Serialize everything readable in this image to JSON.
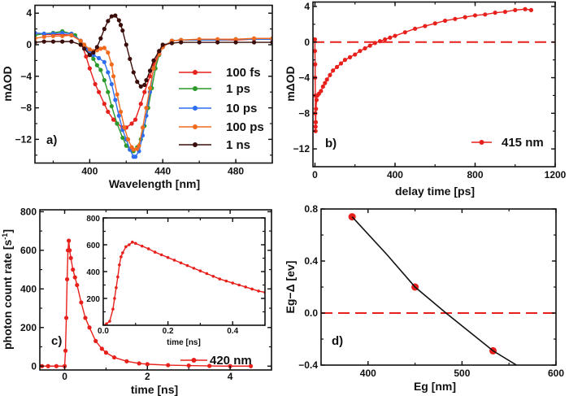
{
  "chart_data": [
    {
      "panel_label": "a)",
      "type": "line",
      "xlabel": "Wavelength [nm]",
      "ylabel": "mΔOD",
      "xlim": [
        370,
        500
      ],
      "ylim": [
        -15,
        5
      ],
      "xticks": [
        {
          "v": 400,
          "label": "400"
        },
        {
          "v": 440,
          "label": "440"
        },
        {
          "v": 480,
          "label": "480"
        }
      ],
      "yticks": [
        {
          "v": -12,
          "label": "−12"
        },
        {
          "v": -8,
          "label": "−8"
        },
        {
          "v": -4,
          "label": "−4"
        },
        {
          "v": 0,
          "label": "0"
        },
        {
          "v": 4,
          "label": "4"
        }
      ],
      "legend_position": "center-right",
      "series": [
        {
          "name": "100 fs",
          "color": "#e8201c",
          "x": [
            370,
            375,
            380,
            385,
            390,
            395,
            398,
            400,
            403,
            405,
            408,
            410,
            413,
            415,
            418,
            420,
            423,
            425,
            428,
            430,
            433,
            435,
            438,
            440,
            445,
            450,
            460,
            470,
            480,
            490,
            500
          ],
          "y": [
            1.5,
            1.3,
            1.3,
            1.3,
            1.2,
            0.5,
            -1.5,
            -3,
            -5,
            -6,
            -7.5,
            -8.5,
            -9.5,
            -10,
            -10.5,
            -10.5,
            -10,
            -9.5,
            -7.5,
            -6,
            -4,
            -2.5,
            -1,
            -0.3,
            0.5,
            0.6,
            0.6,
            0.6,
            0.6,
            0.7,
            0.7
          ]
        },
        {
          "name": "1 ps",
          "color": "#2a9a2a",
          "x": [
            370,
            375,
            380,
            385,
            390,
            392,
            395,
            398,
            400,
            402,
            404,
            406,
            408,
            410,
            412,
            415,
            418,
            420,
            422,
            424,
            426,
            428,
            430,
            432,
            434,
            436,
            438,
            440,
            445,
            450,
            460,
            470,
            480,
            490,
            500
          ],
          "y": [
            1.2,
            1.4,
            1.5,
            1.7,
            1.4,
            1.2,
            0.4,
            -0.5,
            -1.2,
            -1.8,
            -2.6,
            -3.2,
            -4.5,
            -6,
            -7.8,
            -10,
            -11.8,
            -12.8,
            -13.3,
            -13.5,
            -13,
            -12,
            -10.3,
            -8,
            -5.5,
            -3,
            -1.3,
            -0.3,
            0.5,
            0.6,
            0.6,
            0.6,
            0.7,
            0.7,
            0.7
          ]
        },
        {
          "name": "10 ps",
          "color": "#2f6df0",
          "x": [
            370,
            375,
            380,
            385,
            390,
            395,
            398,
            400,
            402,
            405,
            408,
            410,
            412,
            414,
            416,
            418,
            420,
            422,
            424,
            425,
            427,
            429,
            431,
            433,
            435,
            438,
            440,
            445,
            450,
            460,
            470,
            480,
            490,
            500
          ],
          "y": [
            1.5,
            1.4,
            1.4,
            1.5,
            1.4,
            0.5,
            -0.5,
            -1,
            -1.3,
            -1.7,
            -2.2,
            -3.5,
            -5,
            -7,
            -9,
            -10.8,
            -12,
            -13.3,
            -14.2,
            -14.2,
            -13.5,
            -11.5,
            -9,
            -6,
            -3,
            -1.2,
            -0.3,
            0.5,
            0.6,
            0.6,
            0.6,
            0.7,
            0.7,
            0.7
          ]
        },
        {
          "name": "100 ps",
          "color": "#f26a1e",
          "x": [
            370,
            375,
            380,
            385,
            390,
            395,
            397,
            400,
            402,
            404,
            406,
            408,
            410,
            412,
            413,
            415,
            417,
            419,
            421,
            423,
            424,
            426,
            427,
            429,
            431,
            433,
            435,
            438,
            440,
            445,
            450,
            460,
            470,
            480,
            490,
            500
          ],
          "y": [
            0.8,
            1,
            1.1,
            1.1,
            1.2,
            0.5,
            0,
            -0.6,
            -0.8,
            -0.7,
            -0.5,
            -0.4,
            -1,
            -2.5,
            -4,
            -6.3,
            -8.5,
            -10.5,
            -12,
            -13,
            -13.3,
            -13.2,
            -12.8,
            -10.5,
            -8,
            -5.5,
            -3,
            -1.2,
            -0.3,
            0.5,
            0.6,
            0.7,
            0.7,
            0.7,
            0.8,
            0.8
          ]
        },
        {
          "name": "1 ns",
          "color": "#3a0d0a",
          "x": [
            370,
            375,
            380,
            385,
            390,
            395,
            397,
            400,
            402,
            404,
            406,
            408,
            410,
            412,
            414,
            416,
            417,
            418,
            420,
            422,
            424,
            426,
            428,
            430,
            431,
            433,
            435,
            438,
            440,
            445,
            450,
            460,
            470,
            480,
            490,
            500
          ],
          "y": [
            0.3,
            0.4,
            0.4,
            0.4,
            0.4,
            0,
            -0.5,
            -1.3,
            -1,
            -0.3,
            0.8,
            2,
            3,
            3.6,
            3.7,
            3.1,
            2.5,
            1.8,
            0,
            -1.8,
            -3.5,
            -4.7,
            -5.3,
            -5.1,
            -4.5,
            -3.3,
            -2,
            -0.8,
            0,
            0.2,
            0.3,
            0.3,
            0.3,
            0.3,
            0.3,
            0.3
          ]
        }
      ]
    },
    {
      "panel_label": "b)",
      "type": "line",
      "xlabel": "delay time [ps]",
      "ylabel": "mΔOD",
      "xlim": [
        -10,
        1200
      ],
      "ylim": [
        -14,
        4.5
      ],
      "xticks": [
        {
          "v": 0,
          "label": "0"
        },
        {
          "v": 400,
          "label": "400"
        },
        {
          "v": 800,
          "label": "800"
        },
        {
          "v": 1200,
          "label": "1200"
        }
      ],
      "yticks": [
        {
          "v": -12,
          "label": "−12"
        },
        {
          "v": -8,
          "label": "−8"
        },
        {
          "v": -4,
          "label": "−4"
        },
        {
          "v": 0,
          "label": "0"
        },
        {
          "v": 4,
          "label": "4"
        }
      ],
      "reference_line": {
        "y": 0,
        "style": "dashed",
        "color": "#e8201c"
      },
      "legend_position": "bottom-right",
      "series": [
        {
          "name": "415 nm",
          "color": "#e8201c",
          "x": [
            0,
            0,
            1,
            1,
            2,
            2,
            3,
            3,
            4,
            5,
            8,
            12,
            20,
            30,
            40,
            50,
            60,
            75,
            90,
            110,
            130,
            150,
            175,
            200,
            225,
            250,
            275,
            300,
            325,
            350,
            375,
            400,
            450,
            500,
            550,
            600,
            650,
            700,
            750,
            800,
            850,
            900,
            950,
            1000,
            1050,
            1080
          ],
          "y": [
            0.3,
            -1,
            -2.5,
            -4,
            -6,
            -8,
            -9.5,
            -10,
            -9,
            -7.5,
            -6.5,
            -6,
            -5.8,
            -5.5,
            -5,
            -4.6,
            -4.2,
            -3.7,
            -3.2,
            -2.8,
            -2.4,
            -2,
            -1.7,
            -1.4,
            -1,
            -0.7,
            -0.4,
            -0.1,
            0.1,
            0.3,
            0.5,
            0.7,
            1.1,
            1.5,
            1.8,
            2.1,
            2.4,
            2.6,
            2.8,
            3,
            3.1,
            3.3,
            3.4,
            3.6,
            3.7,
            3.6
          ]
        }
      ]
    },
    {
      "panel_label": "c)",
      "type": "line",
      "xlabel": "time [ns]",
      "ylabel": "photon count rate [s",
      "ylabel_sup": "-1",
      "ylabel_end": "]",
      "xlim": [
        -0.6,
        5.0
      ],
      "ylim": [
        -20,
        810
      ],
      "xticks": [
        {
          "v": 0,
          "label": "0"
        },
        {
          "v": 2,
          "label": "2"
        },
        {
          "v": 4,
          "label": "4"
        }
      ],
      "yticks": [
        {
          "v": 0,
          "label": "0"
        },
        {
          "v": 200,
          "label": "200"
        },
        {
          "v": 400,
          "label": "400"
        },
        {
          "v": 600,
          "label": "600"
        },
        {
          "v": 800,
          "label": "800"
        }
      ],
      "legend_position": "bottom-right",
      "series": [
        {
          "name": "420 nm",
          "color": "#e8201c",
          "x": [
            -0.55,
            -0.4,
            -0.2,
            0,
            0.02,
            0.04,
            0.06,
            0.08,
            0.1,
            0.12,
            0.15,
            0.2,
            0.25,
            0.3,
            0.4,
            0.5,
            0.6,
            0.75,
            0.9,
            1,
            1.2,
            1.5,
            1.8,
            2,
            2.5,
            3,
            3.5,
            4,
            4.5
          ],
          "y": [
            0,
            0,
            0,
            0,
            80,
            250,
            450,
            600,
            650,
            600,
            560,
            500,
            460,
            420,
            330,
            250,
            200,
            130,
            90,
            70,
            45,
            25,
            14,
            10,
            5,
            3,
            1,
            0,
            0
          ]
        }
      ],
      "inset": {
        "xlabel": "time [ns]",
        "xlim": [
          0,
          0.5
        ],
        "ylim": [
          0,
          800
        ],
        "xticks": [
          {
            "v": 0,
            "label": "0.0"
          },
          {
            "v": 0.2,
            "label": "0.2"
          },
          {
            "v": 0.4,
            "label": "0.4"
          }
        ],
        "yticks": [
          {
            "v": 200,
            "label": "200"
          },
          {
            "v": 400,
            "label": "400"
          },
          {
            "v": 600,
            "label": "600"
          },
          {
            "v": 800,
            "label": "800"
          }
        ],
        "series": [
          {
            "color": "#e8201c",
            "x": [
              0,
              0.01,
              0.02,
              0.03,
              0.035,
              0.04,
              0.045,
              0.05,
              0.055,
              0.06,
              0.07,
              0.08,
              0.09,
              0.1,
              0.12,
              0.14,
              0.16,
              0.18,
              0.2,
              0.22,
              0.24,
              0.26,
              0.28,
              0.3,
              0.32,
              0.34,
              0.36,
              0.38,
              0.4,
              0.42,
              0.44,
              0.46,
              0.48,
              0.5
            ],
            "y": [
              0,
              10,
              30,
              120,
              200,
              280,
              360,
              450,
              510,
              540,
              585,
              600,
              620,
              610,
              590,
              570,
              545,
              525,
              505,
              485,
              465,
              445,
              425,
              405,
              385,
              365,
              345,
              330,
              315,
              300,
              285,
              270,
              255,
              245
            ]
          }
        ]
      }
    },
    {
      "panel_label": "d)",
      "type": "line",
      "xlabel": "Eg [nm]",
      "ylabel": "Eg−Δ [ev]",
      "xlim": [
        350,
        600
      ],
      "ylim": [
        -0.4,
        0.8
      ],
      "xticks": [
        {
          "v": 400,
          "label": "400"
        },
        {
          "v": 500,
          "label": "500"
        },
        {
          "v": 600,
          "label": "600"
        }
      ],
      "yticks": [
        {
          "v": -0.4,
          "label": "−0.4"
        },
        {
          "v": 0,
          "label": "0.0"
        },
        {
          "v": 0.4,
          "label": "0.4"
        },
        {
          "v": 0.8,
          "label": "0.8"
        }
      ],
      "reference_line": {
        "y": 0,
        "style": "dashed",
        "color": "#e8201c"
      },
      "series": [
        {
          "color": "#e8201c",
          "x": [
            383,
            450,
            533
          ],
          "y": [
            0.74,
            0.2,
            -0.29
          ],
          "markers_only": true
        },
        {
          "color": "#111111",
          "x": [
            383,
            420,
            450,
            483,
            533,
            558
          ],
          "y": [
            0.74,
            0.45,
            0.2,
            0.0,
            -0.29,
            -0.4
          ],
          "line_only": true
        }
      ]
    }
  ]
}
